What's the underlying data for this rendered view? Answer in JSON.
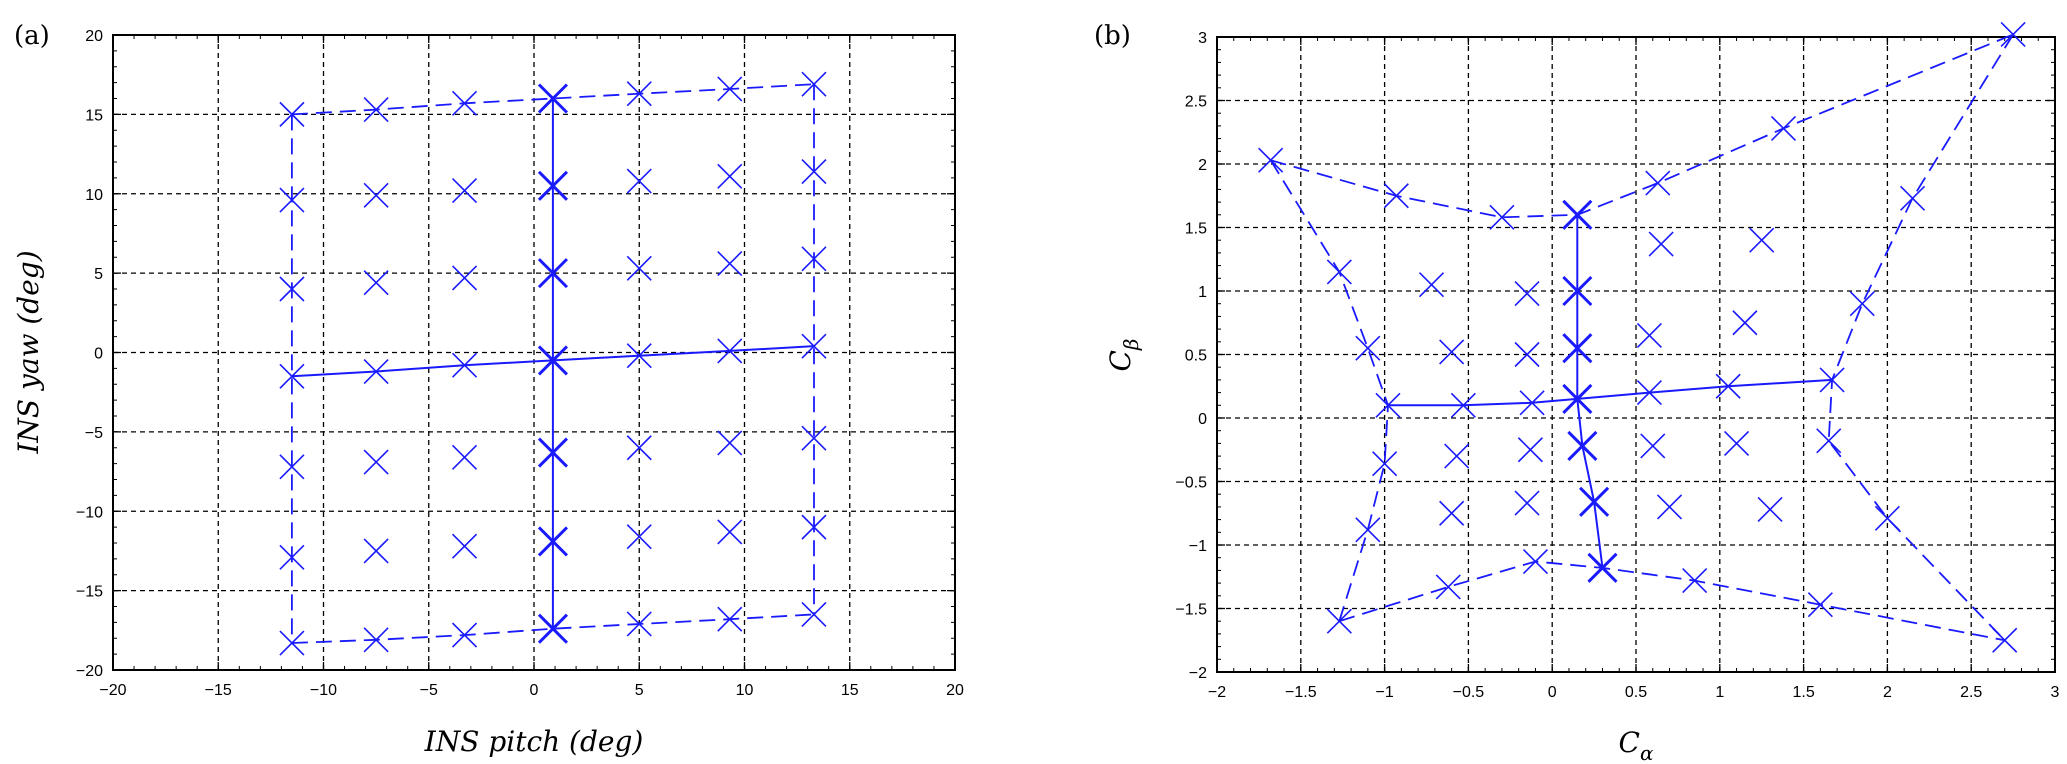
{
  "chart_data": [
    {
      "type": "scatter",
      "panel_label": "(a)",
      "xlabel": "INS pitch (deg)",
      "ylabel": "INS yaw (deg)",
      "xlim": [
        -20,
        20
      ],
      "ylim": [
        -20,
        20
      ],
      "xticks": [
        -20,
        -15,
        -10,
        -5,
        0,
        5,
        10,
        15,
        20
      ],
      "yticks": [
        -20,
        -15,
        -10,
        -5,
        0,
        5,
        10,
        15,
        20
      ],
      "grid": true,
      "color": "#1a1aff",
      "markers": [
        [
          -11.5,
          15.0
        ],
        [
          -7.5,
          15.3
        ],
        [
          -3.3,
          15.7
        ],
        [
          0.9,
          16.0
        ],
        [
          5.0,
          16.3
        ],
        [
          9.3,
          16.6
        ],
        [
          13.3,
          16.9
        ],
        [
          -11.5,
          9.6
        ],
        [
          -7.5,
          9.9
        ],
        [
          -3.3,
          10.2
        ],
        [
          0.9,
          10.5
        ],
        [
          5.0,
          10.8
        ],
        [
          9.3,
          11.1
        ],
        [
          13.3,
          11.4
        ],
        [
          -11.5,
          4.0
        ],
        [
          -7.5,
          4.4
        ],
        [
          -3.3,
          4.7
        ],
        [
          0.9,
          5.0
        ],
        [
          5.0,
          5.3
        ],
        [
          9.3,
          5.6
        ],
        [
          13.3,
          5.9
        ],
        [
          -11.5,
          -1.5
        ],
        [
          -7.5,
          -1.2
        ],
        [
          -3.3,
          -0.8
        ],
        [
          0.9,
          -0.5
        ],
        [
          5.0,
          -0.2
        ],
        [
          9.3,
          0.1
        ],
        [
          13.3,
          0.4
        ],
        [
          -11.5,
          -7.2
        ],
        [
          -7.5,
          -6.9
        ],
        [
          -3.3,
          -6.6
        ],
        [
          0.9,
          -6.3
        ],
        [
          5.0,
          -6.0
        ],
        [
          9.3,
          -5.7
        ],
        [
          13.3,
          -5.4
        ],
        [
          -11.5,
          -12.9
        ],
        [
          -7.5,
          -12.5
        ],
        [
          -3.3,
          -12.2
        ],
        [
          0.9,
          -11.9
        ],
        [
          5.0,
          -11.6
        ],
        [
          9.3,
          -11.3
        ],
        [
          13.3,
          -11.0
        ],
        [
          -11.5,
          -18.3
        ],
        [
          -7.5,
          -18.1
        ],
        [
          -3.3,
          -17.8
        ],
        [
          0.9,
          -17.4
        ],
        [
          5.0,
          -17.1
        ],
        [
          9.3,
          -16.8
        ],
        [
          13.3,
          -16.5
        ]
      ],
      "dashed_lines": [
        [
          [
            -11.5,
            15.0
          ],
          [
            -7.5,
            15.3
          ],
          [
            -3.3,
            15.7
          ],
          [
            0.9,
            16.0
          ],
          [
            5.0,
            16.3
          ],
          [
            9.3,
            16.6
          ],
          [
            13.3,
            16.9
          ]
        ],
        [
          [
            -11.5,
            -18.3
          ],
          [
            -7.5,
            -18.1
          ],
          [
            -3.3,
            -17.8
          ],
          [
            0.9,
            -17.4
          ],
          [
            5.0,
            -17.1
          ],
          [
            9.3,
            -16.8
          ],
          [
            13.3,
            -16.5
          ]
        ],
        [
          [
            -11.5,
            15.0
          ],
          [
            -11.5,
            9.6
          ],
          [
            -11.5,
            4.0
          ],
          [
            -11.5,
            -1.5
          ],
          [
            -11.5,
            -7.2
          ],
          [
            -11.5,
            -12.9
          ],
          [
            -11.5,
            -18.3
          ]
        ],
        [
          [
            13.3,
            16.9
          ],
          [
            13.3,
            11.4
          ],
          [
            13.3,
            5.9
          ],
          [
            13.3,
            0.4
          ],
          [
            13.3,
            -5.4
          ],
          [
            13.3,
            -11.0
          ],
          [
            13.3,
            -16.5
          ]
        ]
      ],
      "solid_lines": [
        [
          [
            0.9,
            16.0
          ],
          [
            0.9,
            10.5
          ],
          [
            0.9,
            5.0
          ],
          [
            0.9,
            -0.5
          ],
          [
            0.9,
            -6.3
          ],
          [
            0.9,
            -11.9
          ],
          [
            0.9,
            -17.4
          ]
        ],
        [
          [
            -11.5,
            -1.5
          ],
          [
            -7.5,
            -1.2
          ],
          [
            -3.3,
            -0.8
          ],
          [
            0.9,
            -0.5
          ],
          [
            5.0,
            -0.2
          ],
          [
            9.3,
            0.1
          ],
          [
            13.3,
            0.4
          ]
        ]
      ],
      "bold_markers": [
        [
          0.9,
          16.0
        ],
        [
          0.9,
          10.5
        ],
        [
          0.9,
          5.0
        ],
        [
          0.9,
          -0.5
        ],
        [
          0.9,
          -6.3
        ],
        [
          0.9,
          -11.9
        ],
        [
          0.9,
          -17.4
        ]
      ]
    },
    {
      "type": "scatter",
      "panel_label": "(b)",
      "xlabel": "C",
      "xlabel_sub": "α",
      "ylabel": "C",
      "ylabel_sub": "β",
      "xlim": [
        -2,
        3
      ],
      "ylim": [
        -2,
        3
      ],
      "xticks": [
        -2,
        -1.5,
        -1,
        -0.5,
        0,
        0.5,
        1,
        1.5,
        2,
        2.5,
        3
      ],
      "yticks": [
        -2,
        -1.5,
        -1,
        -0.5,
        0,
        0.5,
        1,
        1.5,
        2,
        2.5,
        3
      ],
      "grid": true,
      "color": "#1a1aff",
      "markers": [
        [
          -1.68,
          2.03
        ],
        [
          -0.93,
          1.75
        ],
        [
          -0.3,
          1.58
        ],
        [
          0.15,
          1.6
        ],
        [
          0.63,
          1.85
        ],
        [
          1.38,
          2.28
        ],
        [
          2.75,
          3.02
        ],
        [
          -1.27,
          1.15
        ],
        [
          -0.72,
          1.05
        ],
        [
          -0.15,
          0.98
        ],
        [
          0.15,
          1.0
        ],
        [
          0.65,
          1.37
        ],
        [
          1.25,
          1.4
        ],
        [
          2.15,
          1.73
        ],
        [
          -1.1,
          0.55
        ],
        [
          -0.6,
          0.52
        ],
        [
          -0.15,
          0.5
        ],
        [
          0.15,
          0.55
        ],
        [
          0.58,
          0.65
        ],
        [
          1.15,
          0.75
        ],
        [
          1.85,
          0.9
        ],
        [
          -0.98,
          0.1
        ],
        [
          -0.53,
          0.1
        ],
        [
          -0.12,
          0.12
        ],
        [
          0.15,
          0.15
        ],
        [
          0.58,
          0.2
        ],
        [
          1.05,
          0.25
        ],
        [
          1.67,
          0.3
        ],
        [
          -1.0,
          -0.36
        ],
        [
          -0.57,
          -0.3
        ],
        [
          -0.13,
          -0.25
        ],
        [
          0.18,
          -0.22
        ],
        [
          0.6,
          -0.22
        ],
        [
          1.1,
          -0.2
        ],
        [
          1.65,
          -0.18
        ],
        [
          -1.1,
          -0.88
        ],
        [
          -0.6,
          -0.75
        ],
        [
          -0.15,
          -0.67
        ],
        [
          0.25,
          -0.66
        ],
        [
          0.7,
          -0.7
        ],
        [
          1.3,
          -0.72
        ],
        [
          2.0,
          -0.79
        ],
        [
          -1.27,
          -1.6
        ],
        [
          -0.62,
          -1.33
        ],
        [
          -0.1,
          -1.13
        ],
        [
          0.3,
          -1.18
        ],
        [
          0.85,
          -1.28
        ],
        [
          1.6,
          -1.47
        ],
        [
          2.7,
          -1.75
        ]
      ],
      "dashed_lines": [
        [
          [
            -1.68,
            2.03
          ],
          [
            -0.93,
            1.75
          ],
          [
            -0.3,
            1.58
          ],
          [
            0.15,
            1.6
          ],
          [
            0.63,
            1.85
          ],
          [
            1.38,
            2.28
          ],
          [
            2.75,
            3.02
          ]
        ],
        [
          [
            -1.27,
            -1.6
          ],
          [
            -0.62,
            -1.33
          ],
          [
            -0.1,
            -1.13
          ],
          [
            0.3,
            -1.18
          ],
          [
            0.85,
            -1.28
          ],
          [
            1.6,
            -1.47
          ],
          [
            2.7,
            -1.75
          ]
        ],
        [
          [
            -1.68,
            2.03
          ],
          [
            -1.27,
            1.15
          ],
          [
            -1.1,
            0.55
          ],
          [
            -0.98,
            0.1
          ],
          [
            -1.0,
            -0.36
          ],
          [
            -1.1,
            -0.88
          ],
          [
            -1.27,
            -1.6
          ]
        ],
        [
          [
            2.75,
            3.02
          ],
          [
            2.15,
            1.73
          ],
          [
            1.85,
            0.9
          ],
          [
            1.67,
            0.3
          ],
          [
            1.65,
            -0.18
          ],
          [
            2.0,
            -0.79
          ],
          [
            2.7,
            -1.75
          ]
        ]
      ],
      "solid_lines": [
        [
          [
            0.15,
            1.6
          ],
          [
            0.15,
            1.0
          ],
          [
            0.15,
            0.55
          ],
          [
            0.15,
            0.15
          ],
          [
            0.18,
            -0.22
          ],
          [
            0.25,
            -0.66
          ],
          [
            0.3,
            -1.18
          ]
        ],
        [
          [
            -0.98,
            0.1
          ],
          [
            -0.53,
            0.1
          ],
          [
            -0.12,
            0.12
          ],
          [
            0.15,
            0.15
          ],
          [
            0.58,
            0.2
          ],
          [
            1.05,
            0.25
          ],
          [
            1.67,
            0.3
          ]
        ]
      ],
      "bold_markers": [
        [
          0.15,
          1.6
        ],
        [
          0.15,
          1.0
        ],
        [
          0.15,
          0.55
        ],
        [
          0.15,
          0.15
        ],
        [
          0.18,
          -0.22
        ],
        [
          0.25,
          -0.66
        ],
        [
          0.3,
          -1.18
        ]
      ]
    }
  ]
}
